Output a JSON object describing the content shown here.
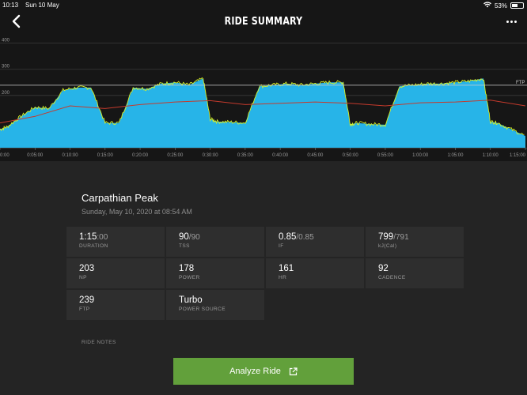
{
  "status": {
    "time": "10:13",
    "date": "Sun 10 May",
    "battery": "53%",
    "battery_level": 0.53
  },
  "nav": {
    "title": "RIDE SUMMARY",
    "back_icon": "chevron-left-icon",
    "more_icon": "more-dots-icon"
  },
  "chart_data": {
    "type": "area",
    "y_ticks": [
      "400",
      "300",
      "200"
    ],
    "ylim": [
      0,
      420
    ],
    "ftp_label": "FTP",
    "ftp": 239,
    "x_ticks": [
      "0:00",
      "0:05:00",
      "0:10:00",
      "0:15:00",
      "0:20:00",
      "0:25:00",
      "0:30:00",
      "0:35:00",
      "0:40:00",
      "0:45:00",
      "0:50:00",
      "0:55:00",
      "1:00:00",
      "1:05:00",
      "1:10:00",
      "1:15:00"
    ],
    "series": [
      {
        "color": "#27b4e8",
        "minutes": [
          0,
          1,
          3,
          5,
          7,
          9,
          11,
          13,
          15,
          17,
          19,
          21,
          23,
          25,
          27,
          29,
          30,
          31,
          33,
          35,
          37,
          39,
          41,
          43,
          45,
          47,
          49,
          50,
          51,
          53,
          55,
          57,
          59,
          61,
          63,
          65,
          67,
          69,
          70,
          71,
          73,
          75
        ],
        "values": [
          70,
          80,
          120,
          155,
          150,
          220,
          230,
          230,
          95,
          95,
          230,
          225,
          245,
          250,
          240,
          265,
          110,
          100,
          98,
          95,
          235,
          240,
          245,
          240,
          245,
          250,
          250,
          90,
          95,
          90,
          88,
          235,
          240,
          245,
          245,
          250,
          255,
          265,
          100,
          95,
          70,
          45
        ]
      },
      {
        "color": "#d8f026",
        "note": "power trace overlay"
      },
      {
        "color": "#c63a2c",
        "minutes": [
          0,
          5,
          10,
          15,
          20,
          25,
          30,
          35,
          40,
          45,
          50,
          55,
          60,
          65,
          70,
          75
        ],
        "values": [
          95,
          120,
          160,
          150,
          165,
          175,
          180,
          165,
          170,
          175,
          170,
          160,
          172,
          175,
          182,
          160
        ]
      }
    ]
  },
  "ride": {
    "name": "Carpathian Peak",
    "date": "Sunday, May 10, 2020 at 08:54 AM"
  },
  "stats": [
    {
      "val": "1:15",
      "sub": ":00",
      "lbl": "DURATION"
    },
    {
      "val": "90",
      "sub": "/90",
      "lbl": "TSS"
    },
    {
      "val": "0.85",
      "sub": "/0.85",
      "lbl": "IF"
    },
    {
      "val": "799",
      "sub": "/791",
      "lbl": "kJ(Cal)"
    },
    {
      "val": "203",
      "sub": "",
      "lbl": "NP"
    },
    {
      "val": "178",
      "sub": "",
      "lbl": "POWER"
    },
    {
      "val": "161",
      "sub": "",
      "lbl": "HR"
    },
    {
      "val": "92",
      "sub": "",
      "lbl": "CADENCE"
    },
    {
      "val": "239",
      "sub": "",
      "lbl": "FTP"
    },
    {
      "val": "Turbo",
      "sub": "",
      "lbl": "POWER SOURCE"
    }
  ],
  "notes_label": "RIDE NOTES",
  "analyze": {
    "label": "Analyze Ride",
    "icon": "external-link-icon",
    "color": "#62a03b"
  }
}
